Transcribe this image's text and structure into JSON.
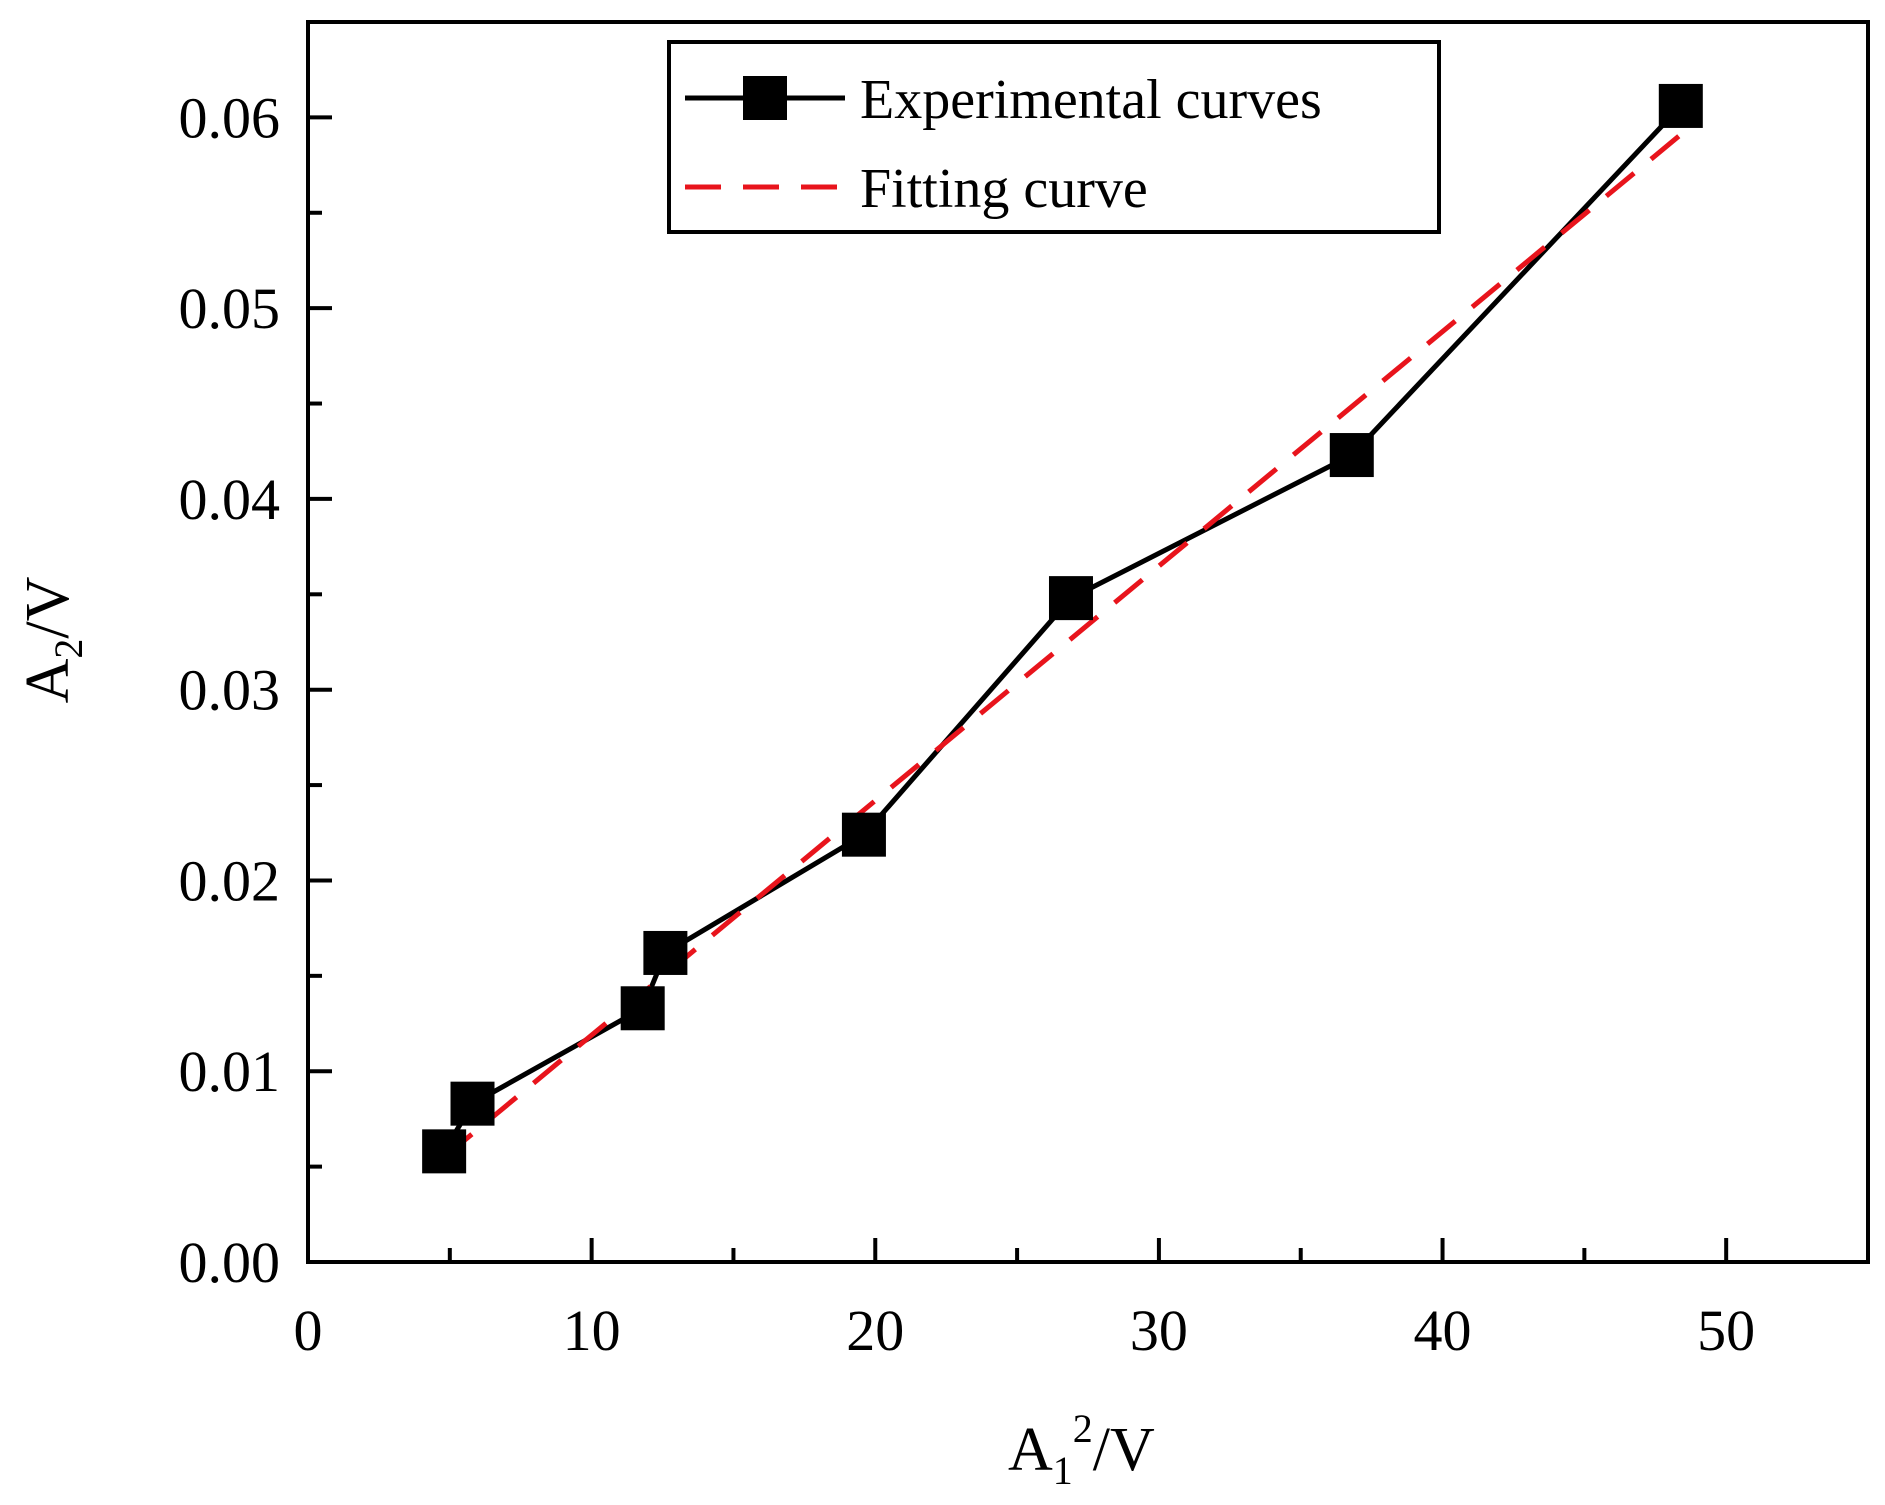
{
  "chart_data": {
    "type": "line",
    "title": "",
    "xlabel": {
      "base": "A",
      "sub": "1",
      "sup": "2",
      "unit": "/V"
    },
    "ylabel": {
      "base": "A",
      "sub": "2",
      "unit": "/V"
    },
    "xlim": [
      0,
      55
    ],
    "ylim": [
      0,
      0.065
    ],
    "x_ticks": [
      0,
      10,
      20,
      30,
      40,
      50
    ],
    "x_tick_labels": [
      "0",
      "10",
      "20",
      "30",
      "40",
      "50"
    ],
    "x_minor_ticks": [
      5,
      15,
      25,
      35,
      45
    ],
    "y_ticks": [
      0,
      0.01,
      0.02,
      0.03,
      0.04,
      0.05,
      0.06
    ],
    "y_tick_labels": [
      "0.00",
      "0.01",
      "0.02",
      "0.03",
      "0.04",
      "0.05",
      "0.06"
    ],
    "y_minor_ticks": [
      0.005,
      0.015,
      0.025,
      0.035,
      0.045,
      0.055
    ],
    "grid": false,
    "legend_position": "top-center",
    "series": [
      {
        "name": "Experimental curves",
        "style": "solid-with-square-markers",
        "color": "#000000",
        "x": [
          4.8,
          5.8,
          11.8,
          12.6,
          19.6,
          26.9,
          36.8,
          48.4
        ],
        "y": [
          0.0058,
          0.0083,
          0.0133,
          0.0162,
          0.0224,
          0.0348,
          0.0423,
          0.0606
        ]
      },
      {
        "name": "Fitting curve",
        "style": "dashed",
        "color": "#e8141c",
        "x": [
          4.8,
          48.4
        ],
        "y": [
          0.0055,
          0.0591
        ]
      }
    ]
  }
}
